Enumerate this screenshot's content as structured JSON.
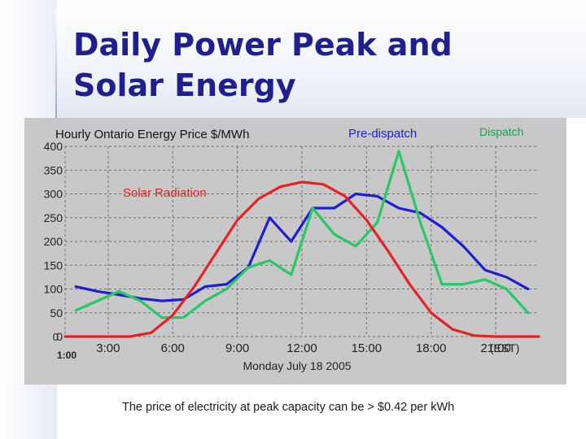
{
  "slide": {
    "title_line1": "Daily Power Peak and",
    "title_line2": "Solar Energy",
    "caption": "The price of electricity at peak capacity can be > $0.42 per kWh"
  },
  "colors": {
    "title": "#1f1f8f",
    "plot_background": "#c8c8c8",
    "pre_dispatch": "#1e1ed2",
    "dispatch": "#28c864",
    "solar": "#e62323"
  },
  "chart_data": {
    "type": "line",
    "title": "Hourly Ontario Energy Price $/MWh",
    "xlabel": "Monday July 18 2005",
    "ylabel": "",
    "ylim": [
      0,
      400
    ],
    "xlim": [
      1,
      23
    ],
    "grid": true,
    "y_ticks": [
      "0",
      "50",
      "100",
      "150",
      "200",
      "250",
      "300",
      "350",
      "400"
    ],
    "x_ticks": [
      {
        "x": 1,
        "label": "1:00"
      },
      {
        "x": 3,
        "label": "3:00"
      },
      {
        "x": 6,
        "label": "6:00"
      },
      {
        "x": 9,
        "label": "9:00"
      },
      {
        "x": 12,
        "label": "12:00"
      },
      {
        "x": 15,
        "label": "15:00"
      },
      {
        "x": 18,
        "label": "18:00"
      },
      {
        "x": 21,
        "label": "21:00"
      }
    ],
    "x_unit_label": "(EST)",
    "extra_y_label": "0",
    "series": [
      {
        "name": "Pre-dispatch",
        "color": "#1e1ed2",
        "x": [
          1.5,
          2.5,
          3.5,
          4.5,
          5.5,
          6.5,
          7.5,
          8.5,
          9.5,
          10.5,
          11.5,
          12.5,
          13.5,
          14.5,
          15.5,
          16.5,
          17.5,
          18.5,
          19.5,
          20.5,
          21.5,
          22.5
        ],
        "values": [
          105,
          95,
          88,
          80,
          75,
          78,
          105,
          110,
          145,
          250,
          200,
          270,
          270,
          300,
          295,
          270,
          260,
          230,
          190,
          140,
          125,
          100
        ]
      },
      {
        "name": "Dispatch",
        "color": "#28c864",
        "x": [
          1.5,
          2.5,
          3.5,
          4.5,
          5.5,
          6.5,
          7.5,
          8.5,
          9.5,
          10.5,
          11.5,
          12.5,
          13.5,
          14.5,
          15.5,
          16.5,
          17.5,
          18.5,
          19.5,
          20.5,
          21.5,
          22.5
        ],
        "values": [
          55,
          75,
          95,
          75,
          40,
          40,
          75,
          100,
          145,
          160,
          130,
          270,
          215,
          190,
          240,
          390,
          240,
          110,
          110,
          120,
          100,
          50
        ]
      },
      {
        "name": "Solar Radiation",
        "color": "#e62323",
        "x": [
          1,
          2,
          3,
          4,
          5,
          6,
          7,
          8,
          9,
          10,
          11,
          12,
          13,
          14,
          15,
          16,
          17,
          18,
          19,
          20,
          21,
          22,
          23
        ],
        "values": [
          0,
          0,
          0,
          0,
          8,
          45,
          105,
          175,
          245,
          290,
          315,
          325,
          320,
          295,
          245,
          180,
          110,
          50,
          15,
          2,
          0,
          0,
          0
        ]
      }
    ]
  }
}
